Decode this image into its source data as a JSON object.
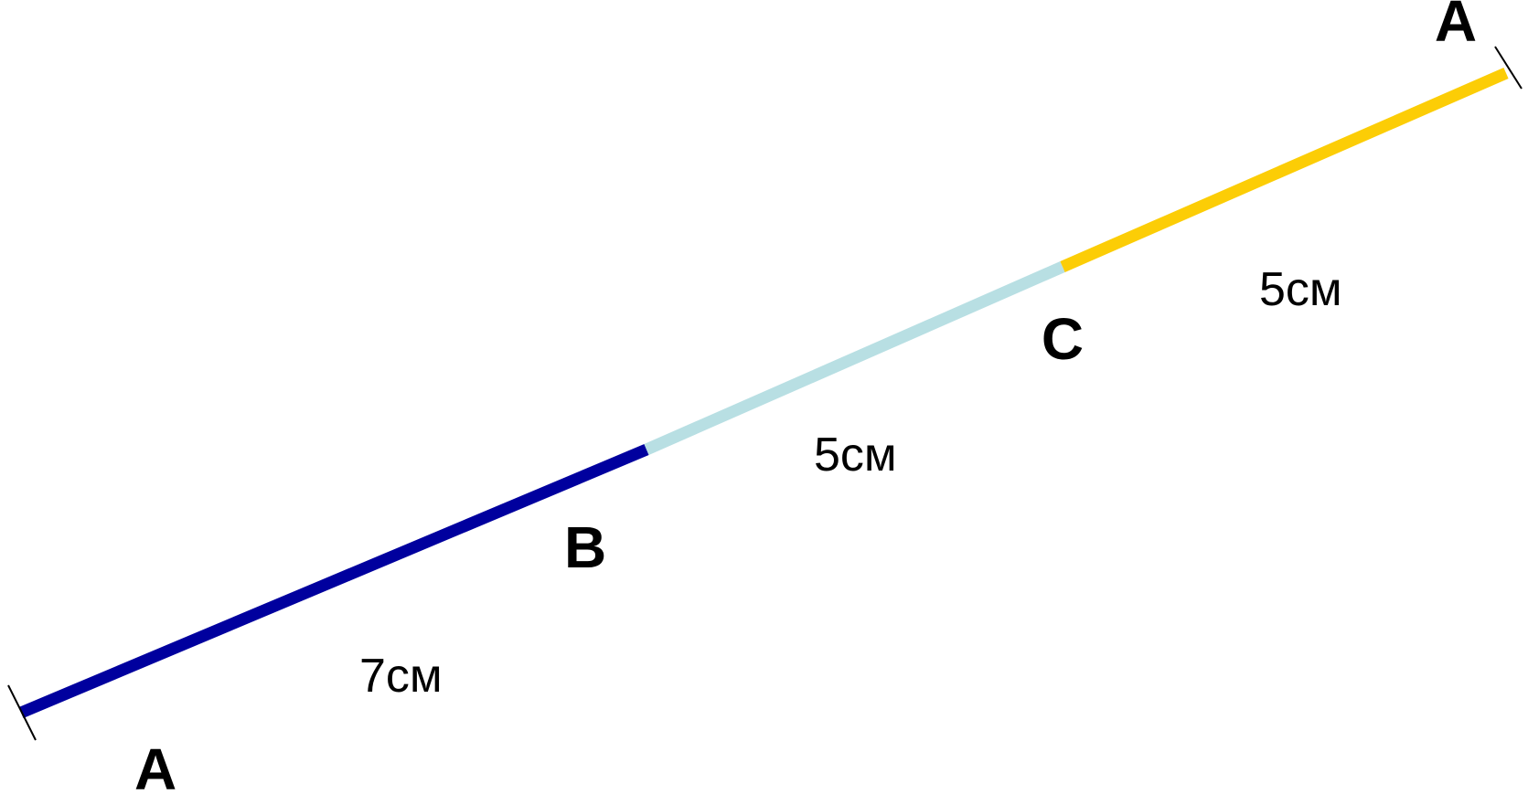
{
  "points": {
    "start": "A",
    "b": "B",
    "c": "C",
    "end": "A"
  },
  "segments": [
    {
      "name": "AB",
      "length_label": "7см",
      "color": "#00009E"
    },
    {
      "name": "BC",
      "length_label": "5см",
      "color": "#B8DFE3"
    },
    {
      "name": "CA",
      "length_label": "5см",
      "color": "#FCCD06"
    }
  ]
}
